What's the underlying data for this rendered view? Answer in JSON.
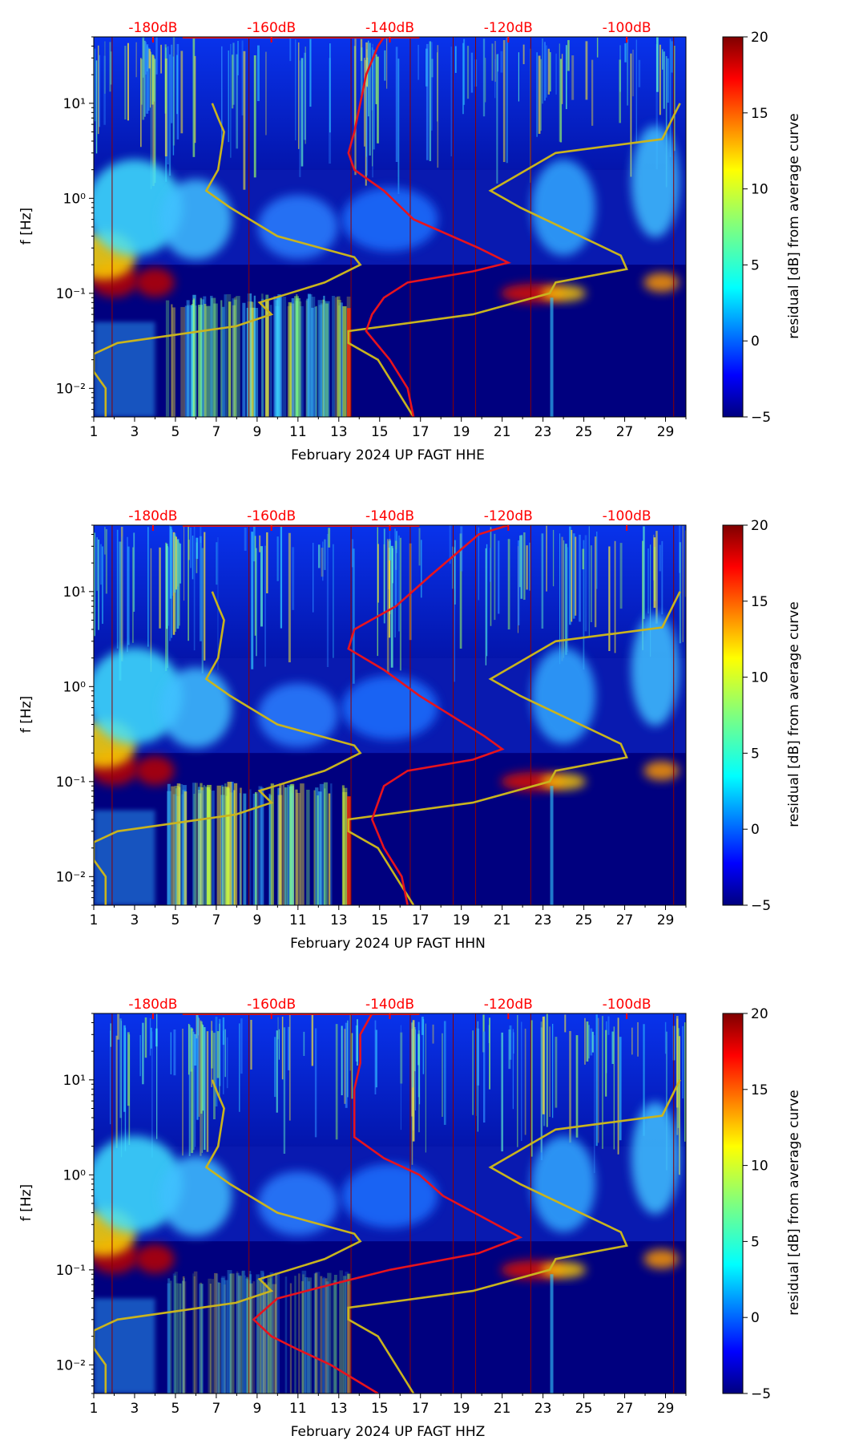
{
  "chart_data": [
    {
      "type": "heatmap",
      "subtype": "spectrogram",
      "xlabel": "February 2024 UP FAGT  HHE",
      "ylabel": "f [Hz]",
      "yscale": "log",
      "ylim": [
        0.005,
        50
      ],
      "xlim": [
        1,
        30
      ],
      "x_ticks": [
        "1",
        "3",
        "5",
        "7",
        "9",
        "11",
        "13",
        "15",
        "17",
        "19",
        "21",
        "23",
        "25",
        "27",
        "29"
      ],
      "y_ticks": [
        "10⁻²",
        "10⁻¹",
        "10⁰",
        "10¹"
      ],
      "top_axis_labels": [
        "-180dB",
        "-160dB",
        "-140dB",
        "-120dB",
        "-100dB"
      ],
      "colorbar": {
        "label": "residual [dB] from average curve",
        "range": [
          -5,
          20
        ],
        "ticks": [
          "−5",
          "0",
          "5",
          "10",
          "15",
          "20"
        ]
      },
      "event_lines_day": [
        1.9,
        8.6,
        13.6,
        16.5,
        18.6,
        19.7,
        22.4,
        29.4
      ],
      "noise_model_curves": {
        "low": [
          [
            -188,
            0.005
          ],
          [
            -188,
            0.01
          ],
          [
            -190,
            0.015
          ],
          [
            -190,
            0.023
          ],
          [
            -186,
            0.03
          ],
          [
            -166,
            0.045
          ],
          [
            -160,
            0.06
          ],
          [
            -162,
            0.08
          ],
          [
            -151,
            0.13
          ],
          [
            -145,
            0.2
          ],
          [
            -146,
            0.24
          ],
          [
            -159,
            0.4
          ],
          [
            -167,
            0.8
          ],
          [
            -171,
            1.2
          ],
          [
            -169,
            2
          ],
          [
            -168,
            5
          ],
          [
            -169,
            7
          ],
          [
            -170,
            10
          ]
        ],
        "high": [
          [
            -136,
            0.005
          ],
          [
            -142,
            0.02
          ],
          [
            -147,
            0.03
          ],
          [
            -147,
            0.04
          ],
          [
            -126,
            0.06
          ],
          [
            -113,
            0.1
          ],
          [
            -112,
            0.13
          ],
          [
            -100,
            0.18
          ],
          [
            -101,
            0.25
          ],
          [
            -118,
            0.8
          ],
          [
            -123,
            1.2
          ],
          [
            -112,
            3
          ],
          [
            -94,
            4.2
          ],
          [
            -92,
            7.5
          ],
          [
            -91,
            10
          ]
        ]
      },
      "psd_curve": [
        [
          -136,
          0.005
        ],
        [
          -137,
          0.01
        ],
        [
          -140,
          0.02
        ],
        [
          -144,
          0.04
        ],
        [
          -143,
          0.06
        ],
        [
          -141,
          0.09
        ],
        [
          -137,
          0.13
        ],
        [
          -126,
          0.17
        ],
        [
          -120,
          0.21
        ],
        [
          -125,
          0.3
        ],
        [
          -136,
          0.6
        ],
        [
          -141,
          1.2
        ],
        [
          -146,
          2
        ],
        [
          -147,
          3
        ],
        [
          -146,
          5
        ],
        [
          -145,
          10
        ],
        [
          -144,
          20
        ],
        [
          -142,
          40
        ],
        [
          -141,
          50
        ]
      ]
    },
    {
      "type": "heatmap",
      "subtype": "spectrogram",
      "xlabel": "February 2024 UP FAGT  HHN",
      "ylabel": "f [Hz]",
      "yscale": "log",
      "ylim": [
        0.005,
        50
      ],
      "xlim": [
        1,
        30
      ],
      "x_ticks": [
        "1",
        "3",
        "5",
        "7",
        "9",
        "11",
        "13",
        "15",
        "17",
        "19",
        "21",
        "23",
        "25",
        "27",
        "29"
      ],
      "y_ticks": [
        "10⁻²",
        "10⁻¹",
        "10⁰",
        "10¹"
      ],
      "top_axis_labels": [
        "-180dB",
        "-160dB",
        "-140dB",
        "-120dB",
        "-100dB"
      ],
      "colorbar": {
        "label": "residual [dB] from average curve",
        "range": [
          -5,
          20
        ],
        "ticks": [
          "−5",
          "0",
          "5",
          "10",
          "15",
          "20"
        ]
      },
      "event_lines_day": [
        1.9,
        8.6,
        13.6,
        16.5,
        18.6,
        19.7,
        22.4,
        29.4
      ],
      "noise_model_curves": {
        "low": [
          [
            -188,
            0.005
          ],
          [
            -188,
            0.01
          ],
          [
            -190,
            0.015
          ],
          [
            -190,
            0.023
          ],
          [
            -186,
            0.03
          ],
          [
            -166,
            0.045
          ],
          [
            -160,
            0.06
          ],
          [
            -162,
            0.08
          ],
          [
            -151,
            0.13
          ],
          [
            -145,
            0.2
          ],
          [
            -146,
            0.24
          ],
          [
            -159,
            0.4
          ],
          [
            -167,
            0.8
          ],
          [
            -171,
            1.2
          ],
          [
            -169,
            2
          ],
          [
            -168,
            5
          ],
          [
            -169,
            7
          ],
          [
            -170,
            10
          ]
        ],
        "high": [
          [
            -136,
            0.005
          ],
          [
            -142,
            0.02
          ],
          [
            -147,
            0.03
          ],
          [
            -147,
            0.04
          ],
          [
            -126,
            0.06
          ],
          [
            -113,
            0.1
          ],
          [
            -112,
            0.13
          ],
          [
            -100,
            0.18
          ],
          [
            -101,
            0.25
          ],
          [
            -118,
            0.8
          ],
          [
            -123,
            1.2
          ],
          [
            -112,
            3
          ],
          [
            -94,
            4.2
          ],
          [
            -92,
            7.5
          ],
          [
            -91,
            10
          ]
        ]
      },
      "psd_curve": [
        [
          -137,
          0.005
        ],
        [
          -138,
          0.01
        ],
        [
          -141,
          0.02
        ],
        [
          -143,
          0.04
        ],
        [
          -142,
          0.06
        ],
        [
          -141,
          0.09
        ],
        [
          -137,
          0.13
        ],
        [
          -126,
          0.17
        ],
        [
          -121,
          0.22
        ],
        [
          -124,
          0.3
        ],
        [
          -135,
          0.8
        ],
        [
          -141,
          1.5
        ],
        [
          -147,
          2.5
        ],
        [
          -146,
          4
        ],
        [
          -139,
          7
        ],
        [
          -133,
          15
        ],
        [
          -125,
          40
        ],
        [
          -120,
          50
        ]
      ]
    },
    {
      "type": "heatmap",
      "subtype": "spectrogram",
      "xlabel": "February 2024 UP FAGT  HHZ",
      "ylabel": "f [Hz]",
      "yscale": "log",
      "ylim": [
        0.005,
        50
      ],
      "xlim": [
        1,
        30
      ],
      "x_ticks": [
        "1",
        "3",
        "5",
        "7",
        "9",
        "11",
        "13",
        "15",
        "17",
        "19",
        "21",
        "23",
        "25",
        "27",
        "29"
      ],
      "y_ticks": [
        "10⁻²",
        "10⁻¹",
        "10⁰",
        "10¹"
      ],
      "top_axis_labels": [
        "-180dB",
        "-160dB",
        "-140dB",
        "-120dB",
        "-100dB"
      ],
      "colorbar": {
        "label": "residual [dB] from average curve",
        "range": [
          -5,
          20
        ],
        "ticks": [
          "−5",
          "0",
          "5",
          "10",
          "15",
          "20"
        ]
      },
      "event_lines_day": [
        1.9,
        8.6,
        13.6,
        16.5,
        18.6,
        19.7,
        22.4,
        29.4
      ],
      "noise_model_curves": {
        "low": [
          [
            -188,
            0.005
          ],
          [
            -188,
            0.01
          ],
          [
            -190,
            0.015
          ],
          [
            -190,
            0.023
          ],
          [
            -186,
            0.03
          ],
          [
            -166,
            0.045
          ],
          [
            -160,
            0.06
          ],
          [
            -162,
            0.08
          ],
          [
            -151,
            0.13
          ],
          [
            -145,
            0.2
          ],
          [
            -146,
            0.24
          ],
          [
            -159,
            0.4
          ],
          [
            -167,
            0.8
          ],
          [
            -171,
            1.2
          ],
          [
            -169,
            2
          ],
          [
            -168,
            5
          ],
          [
            -169,
            7
          ],
          [
            -170,
            10
          ]
        ],
        "high": [
          [
            -136,
            0.005
          ],
          [
            -142,
            0.02
          ],
          [
            -147,
            0.03
          ],
          [
            -147,
            0.04
          ],
          [
            -126,
            0.06
          ],
          [
            -113,
            0.1
          ],
          [
            -112,
            0.13
          ],
          [
            -100,
            0.18
          ],
          [
            -101,
            0.25
          ],
          [
            -118,
            0.8
          ],
          [
            -123,
            1.2
          ],
          [
            -112,
            3
          ],
          [
            -94,
            4.2
          ],
          [
            -92,
            7.5
          ],
          [
            -91,
            10
          ]
        ]
      },
      "psd_curve": [
        [
          -142,
          0.005
        ],
        [
          -150,
          0.01
        ],
        [
          -156,
          0.015
        ],
        [
          -160,
          0.02
        ],
        [
          -163,
          0.03
        ],
        [
          -159,
          0.05
        ],
        [
          -150,
          0.07
        ],
        [
          -140,
          0.1
        ],
        [
          -125,
          0.15
        ],
        [
          -118,
          0.22
        ],
        [
          -124,
          0.35
        ],
        [
          -131,
          0.6
        ],
        [
          -135,
          1
        ],
        [
          -141,
          1.5
        ],
        [
          -146,
          2.5
        ],
        [
          -146,
          4
        ],
        [
          -146,
          8
        ],
        [
          -145,
          15
        ],
        [
          -145,
          30
        ],
        [
          -143,
          50
        ]
      ]
    }
  ],
  "colors": {
    "top_axis_text": "#ff0000",
    "psd_curve": "#e8131d",
    "noise_model": "#c9b41e",
    "event_line": "#8b0000",
    "background_low": "#00007f"
  }
}
